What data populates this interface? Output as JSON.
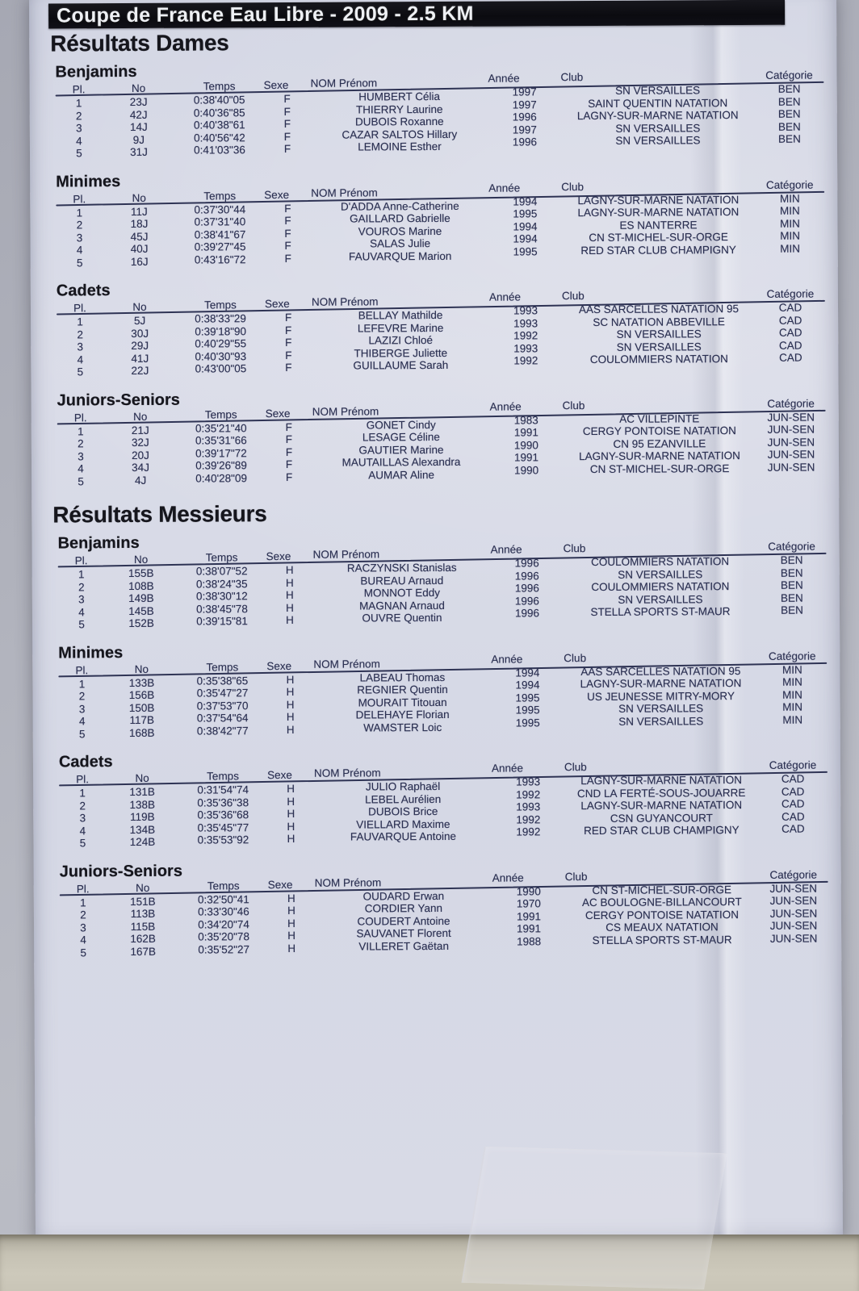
{
  "title_bar": "Coupe de France Eau Libre - 2009 - 2.5 KM",
  "table_headers": {
    "pl": "Pl.",
    "no": "No",
    "temps": "Temps",
    "sexe": "Sexe",
    "nom_prenom": "NOM Prénom",
    "annee": "Année",
    "club": "Club",
    "categorie": "Catégorie"
  },
  "column_keys": [
    "pl",
    "no",
    "temps",
    "sexe",
    "nom-prenom",
    "annee",
    "club",
    "categorie"
  ],
  "colors": {
    "title_bar_bg": "#0d0d12",
    "title_text": "#eef0f4",
    "ink": "#2b3052",
    "heading_ink": "#16161d",
    "paper": "#d7dae6",
    "wall": "#cdc9bb"
  },
  "sections": [
    {
      "heading": "Résultats Dames",
      "groups": [
        {
          "heading": "Benjamins",
          "rows": [
            [
              "1",
              "23J",
              "0:38'40\"05",
              "F",
              "HUMBERT Célia",
              "1997",
              "SN VERSAILLES",
              "BEN"
            ],
            [
              "2",
              "42J",
              "0:40'36\"85",
              "F",
              "THIERRY Laurine",
              "1997",
              "SAINT QUENTIN NATATION",
              "BEN"
            ],
            [
              "3",
              "14J",
              "0:40'38\"61",
              "F",
              "DUBOIS Roxanne",
              "1996",
              "LAGNY-SUR-MARNE NATATION",
              "BEN"
            ],
            [
              "4",
              "9J",
              "0:40'56\"42",
              "F",
              "CAZAR SALTOS Hillary",
              "1997",
              "SN VERSAILLES",
              "BEN"
            ],
            [
              "5",
              "31J",
              "0:41'03\"36",
              "F",
              "LEMOINE Esther",
              "1996",
              "SN VERSAILLES",
              "BEN"
            ]
          ]
        },
        {
          "heading": "Minimes",
          "rows": [
            [
              "1",
              "11J",
              "0:37'30\"44",
              "F",
              "D'ADDA Anne-Catherine",
              "1994",
              "LAGNY-SUR-MARNE NATATION",
              "MIN"
            ],
            [
              "2",
              "18J",
              "0:37'31\"40",
              "F",
              "GAILLARD Gabrielle",
              "1995",
              "LAGNY-SUR-MARNE NATATION",
              "MIN"
            ],
            [
              "3",
              "45J",
              "0:38'41\"67",
              "F",
              "VOUROS Marine",
              "1994",
              "ES NANTERRE",
              "MIN"
            ],
            [
              "4",
              "40J",
              "0:39'27\"45",
              "F",
              "SALAS Julie",
              "1994",
              "CN ST-MICHEL-SUR-ORGE",
              "MIN"
            ],
            [
              "5",
              "16J",
              "0:43'16\"72",
              "F",
              "FAUVARQUE Marion",
              "1995",
              "RED STAR CLUB CHAMPIGNY",
              "MIN"
            ]
          ]
        },
        {
          "heading": "Cadets",
          "rows": [
            [
              "1",
              "5J",
              "0:38'33\"29",
              "F",
              "BELLAY Mathilde",
              "1993",
              "AAS SARCELLES NATATION 95",
              "CAD"
            ],
            [
              "2",
              "30J",
              "0:39'18\"90",
              "F",
              "LEFEVRE Marine",
              "1993",
              "SC NATATION ABBEVILLE",
              "CAD"
            ],
            [
              "3",
              "29J",
              "0:40'29\"55",
              "F",
              "LAZIZI Chloé",
              "1992",
              "SN VERSAILLES",
              "CAD"
            ],
            [
              "4",
              "41J",
              "0:40'30\"93",
              "F",
              "THIBERGE Juliette",
              "1993",
              "SN VERSAILLES",
              "CAD"
            ],
            [
              "5",
              "22J",
              "0:43'00\"05",
              "F",
              "GUILLAUME Sarah",
              "1992",
              "COULOMMIERS NATATION",
              "CAD"
            ]
          ]
        },
        {
          "heading": "Juniors-Seniors",
          "rows": [
            [
              "1",
              "21J",
              "0:35'21\"40",
              "F",
              "GONET Cindy",
              "1983",
              "AC VILLEPINTE",
              "JUN-SEN"
            ],
            [
              "2",
              "32J",
              "0:35'31\"66",
              "F",
              "LESAGE Céline",
              "1991",
              "CERGY PONTOISE NATATION",
              "JUN-SEN"
            ],
            [
              "3",
              "20J",
              "0:39'17\"72",
              "F",
              "GAUTIER Marine",
              "1990",
              "CN 95 EZANVILLE",
              "JUN-SEN"
            ],
            [
              "4",
              "34J",
              "0:39'26\"89",
              "F",
              "MAUTAILLAS Alexandra",
              "1991",
              "LAGNY-SUR-MARNE NATATION",
              "JUN-SEN"
            ],
            [
              "5",
              "4J",
              "0:40'28\"09",
              "F",
              "AUMAR Aline",
              "1990",
              "CN ST-MICHEL-SUR-ORGE",
              "JUN-SEN"
            ]
          ]
        }
      ]
    },
    {
      "heading": "Résultats Messieurs",
      "groups": [
        {
          "heading": "Benjamins",
          "rows": [
            [
              "1",
              "155B",
              "0:38'07\"52",
              "H",
              "RACZYNSKI Stanislas",
              "1996",
              "COULOMMIERS NATATION",
              "BEN"
            ],
            [
              "2",
              "108B",
              "0:38'24\"35",
              "H",
              "BUREAU Arnaud",
              "1996",
              "SN VERSAILLES",
              "BEN"
            ],
            [
              "3",
              "149B",
              "0:38'30\"12",
              "H",
              "MONNOT Eddy",
              "1996",
              "COULOMMIERS NATATION",
              "BEN"
            ],
            [
              "4",
              "145B",
              "0:38'45\"78",
              "H",
              "MAGNAN Arnaud",
              "1996",
              "SN VERSAILLES",
              "BEN"
            ],
            [
              "5",
              "152B",
              "0:39'15\"81",
              "H",
              "OUVRE Quentin",
              "1996",
              "STELLA SPORTS ST-MAUR",
              "BEN"
            ]
          ]
        },
        {
          "heading": "Minimes",
          "rows": [
            [
              "1",
              "133B",
              "0:35'38\"65",
              "H",
              "LABEAU Thomas",
              "1994",
              "AAS SARCELLES NATATION 95",
              "MIN"
            ],
            [
              "2",
              "156B",
              "0:35'47\"27",
              "H",
              "REGNIER Quentin",
              "1994",
              "LAGNY-SUR-MARNE NATATION",
              "MIN"
            ],
            [
              "3",
              "150B",
              "0:37'53\"70",
              "H",
              "MOURAIT Titouan",
              "1995",
              "US JEUNESSE MITRY-MORY",
              "MIN"
            ],
            [
              "4",
              "117B",
              "0:37'54\"64",
              "H",
              "DELEHAYE Florian",
              "1995",
              "SN VERSAILLES",
              "MIN"
            ],
            [
              "5",
              "168B",
              "0:38'42\"77",
              "H",
              "WAMSTER Loic",
              "1995",
              "SN VERSAILLES",
              "MIN"
            ]
          ]
        },
        {
          "heading": "Cadets",
          "rows": [
            [
              "1",
              "131B",
              "0:31'54\"74",
              "H",
              "JULIO Raphaël",
              "1993",
              "LAGNY-SUR-MARNE NATATION",
              "CAD"
            ],
            [
              "2",
              "138B",
              "0:35'36\"38",
              "H",
              "LEBEL Aurélien",
              "1992",
              "CND LA FERTÉ-SOUS-JOUARRE",
              "CAD"
            ],
            [
              "3",
              "119B",
              "0:35'36\"68",
              "H",
              "DUBOIS Brice",
              "1993",
              "LAGNY-SUR-MARNE NATATION",
              "CAD"
            ],
            [
              "4",
              "134B",
              "0:35'45\"77",
              "H",
              "VIELLARD Maxime",
              "1992",
              "CSN GUYANCOURT",
              "CAD"
            ],
            [
              "5",
              "124B",
              "0:35'53\"92",
              "H",
              "FAUVARQUE Antoine",
              "1992",
              "RED STAR CLUB CHAMPIGNY",
              "CAD"
            ]
          ]
        },
        {
          "heading": "Juniors-Seniors",
          "rows": [
            [
              "1",
              "151B",
              "0:32'50\"41",
              "H",
              "OUDARD Erwan",
              "1990",
              "CN ST-MICHEL-SUR-ORGE",
              "JUN-SEN"
            ],
            [
              "2",
              "113B",
              "0:33'30\"46",
              "H",
              "CORDIER Yann",
              "1970",
              "AC BOULOGNE-BILLANCOURT",
              "JUN-SEN"
            ],
            [
              "3",
              "115B",
              "0:34'20\"74",
              "H",
              "COUDERT Antoine",
              "1991",
              "CERGY PONTOISE NATATION",
              "JUN-SEN"
            ],
            [
              "4",
              "162B",
              "0:35'20\"78",
              "H",
              "SAUVANET Florent",
              "1991",
              "CS MEAUX NATATION",
              "JUN-SEN"
            ],
            [
              "5",
              "167B",
              "0:35'52\"27",
              "H",
              "VILLERET Gaëtan",
              "1988",
              "STELLA SPORTS ST-MAUR",
              "JUN-SEN"
            ]
          ]
        }
      ]
    }
  ]
}
